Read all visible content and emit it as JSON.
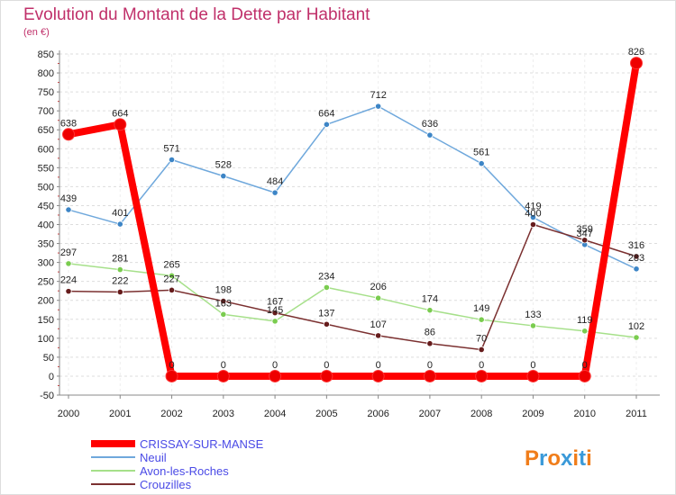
{
  "chart_data": {
    "type": "line",
    "title": "Evolution du Montant de la Dette par Habitant",
    "subtitle": "(en €)",
    "xlabel": "",
    "ylabel": "",
    "x": [
      "2000",
      "2001",
      "2002",
      "2003",
      "2004",
      "2005",
      "2006",
      "2007",
      "2008",
      "2009",
      "2010",
      "2011"
    ],
    "ylim": [
      -50,
      850
    ],
    "yticks": [
      -50,
      0,
      50,
      100,
      150,
      200,
      250,
      300,
      350,
      400,
      450,
      500,
      550,
      600,
      650,
      700,
      750,
      800,
      850
    ],
    "grid": "horizontal dashed",
    "legend_position": "bottom-left",
    "series": [
      {
        "name": "CRISSAY-SUR-MANSE",
        "color": "#ff0000",
        "point_color": "#ee0000",
        "values": [
          638,
          664,
          0,
          0,
          0,
          0,
          0,
          0,
          0,
          0,
          0,
          826
        ]
      },
      {
        "name": "Neuil",
        "color": "#6fa8dc",
        "point_color": "#3d85c6",
        "values": [
          439,
          401,
          571,
          528,
          484,
          664,
          712,
          636,
          561,
          419,
          347,
          283
        ]
      },
      {
        "name": "Avon-les-Roches",
        "color": "#a6e08a",
        "point_color": "#7acc4f",
        "values": [
          297,
          281,
          265,
          163,
          145,
          234,
          206,
          174,
          149,
          133,
          119,
          102
        ]
      },
      {
        "name": "Crouzilles",
        "color": "#7b3030",
        "point_color": "#661c1c",
        "values": [
          224,
          222,
          227,
          198,
          167,
          137,
          107,
          86,
          70,
          400,
          359,
          316
        ]
      }
    ]
  },
  "branding": {
    "logo_letters": [
      "P",
      "r",
      "o",
      "x",
      "i",
      "t",
      "i"
    ],
    "logo_colors": [
      "#f07d1a",
      "#3b9ad9",
      "#f07d1a",
      "#3b9ad9",
      "#f07d1a",
      "#3b9ad9",
      "#f07d1a"
    ]
  }
}
